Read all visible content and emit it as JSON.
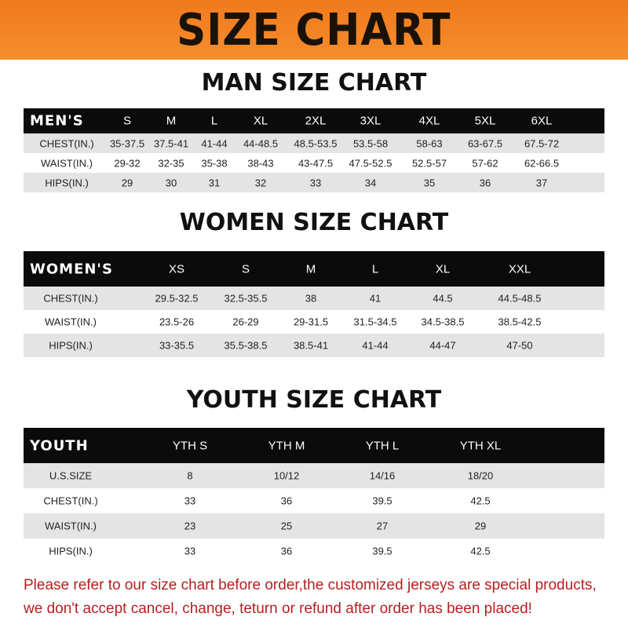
{
  "banner": "SIZE CHART",
  "men": {
    "title": "MAN SIZE CHART",
    "header": [
      "MEN'S",
      "S",
      "M",
      "L",
      "XL",
      "2XL",
      "3XL",
      "4XL",
      "5XL",
      "6XL"
    ],
    "rows": [
      [
        "CHEST(IN.)",
        "35-37.5",
        "37.5-41",
        "41-44",
        "44-48.5",
        "48.5-53.5",
        "53.5-58",
        "58-63",
        "63-67.5",
        "67.5-72"
      ],
      [
        "WAIST(IN.)",
        "29-32",
        "32-35",
        "35-38",
        "38-43",
        "43-47.5",
        "47.5-52.5",
        "52.5-57",
        "57-62",
        "62-66.5"
      ],
      [
        "HIPS(IN.)",
        "29",
        "30",
        "31",
        "32",
        "33",
        "34",
        "35",
        "36",
        "37"
      ]
    ]
  },
  "women": {
    "title": "WOMEN SIZE CHART",
    "header": [
      "WOMEN'S",
      "XS",
      "S",
      "M",
      "L",
      "XL",
      "XXL"
    ],
    "rows": [
      [
        "CHEST(IN.)",
        "29.5-32.5",
        "32.5-35.5",
        "38",
        "41",
        "44.5",
        "44.5-48.5"
      ],
      [
        "WAIST(IN.)",
        "23.5-26",
        "26-29",
        "29-31.5",
        "31.5-34.5",
        "34.5-38.5",
        "38.5-42.5"
      ],
      [
        "HIPS(IN.)",
        "33-35.5",
        "35.5-38.5",
        "38.5-41",
        "41-44",
        "44-47",
        "47-50"
      ]
    ]
  },
  "youth": {
    "title": "YOUTH SIZE CHART",
    "header": [
      "YOUTH",
      "YTH S",
      "YTH M",
      "YTH L",
      "YTH XL"
    ],
    "rows": [
      [
        "U.S.SIZE",
        "8",
        "10/12",
        "14/16",
        "18/20"
      ],
      [
        "CHEST(IN.)",
        "33",
        "36",
        "39.5",
        "42.5"
      ],
      [
        "WAIST(IN.)",
        "23",
        "25",
        "27",
        "29"
      ],
      [
        "HIPS(IN.)",
        "33",
        "36",
        "39.5",
        "42.5"
      ]
    ]
  },
  "notice": [
    "Please refer to our size chart before order,the customized jerseys are special products,",
    "we don't accept cancel, change, teturn or refund after order has been placed!"
  ]
}
